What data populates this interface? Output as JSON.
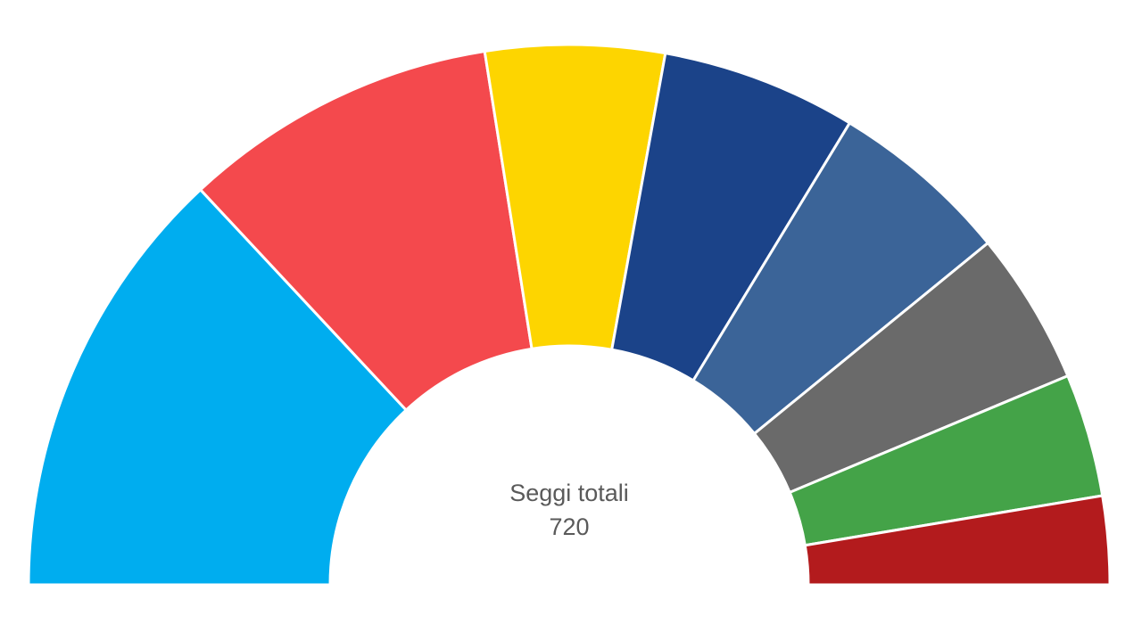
{
  "chart_data": {
    "type": "pie",
    "variant": "half-donut",
    "center_text": "Seggi totali",
    "center_value": "720",
    "total": 720,
    "slices": [
      {
        "value": 188,
        "color": "#00adef"
      },
      {
        "value": 136,
        "color": "#f4494d"
      },
      {
        "value": 77,
        "color": "#fdd500"
      },
      {
        "value": 84,
        "color": "#1b4389"
      },
      {
        "value": 78,
        "color": "#3b6498"
      },
      {
        "value": 66,
        "color": "#6a6a6a"
      },
      {
        "value": 53,
        "color": "#44a348"
      },
      {
        "value": 38,
        "color": "#b31b1d"
      }
    ]
  }
}
